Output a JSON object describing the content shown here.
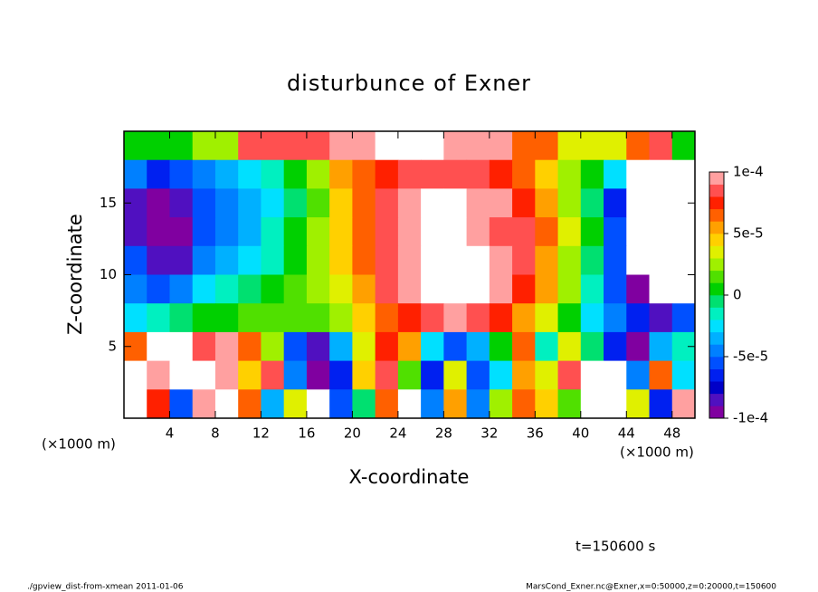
{
  "chart_data": {
    "type": "contourf",
    "title": "disturbunce of Exner",
    "x_label": "X-coordinate",
    "y_label": "Z-coordinate",
    "x_unit_label": "(×1000 m)",
    "time_label": "t=150600 s",
    "footer_left": "./gpview_dist-from-xmean  2011-01-06",
    "footer_right": "MarsCond_Exner.nc@Exner,x=0:50000,z=0:20000,t=150600",
    "xlim": [
      0,
      50
    ],
    "xticks": [
      4,
      8,
      12,
      16,
      20,
      24,
      28,
      32,
      36,
      40,
      44,
      48
    ],
    "ylim": [
      0,
      20
    ],
    "yticks": [
      5,
      10,
      15
    ],
    "clim": [
      -0.0001,
      0.0001
    ],
    "cticks": [
      {
        "value": 0.0001,
        "label": "1e-4"
      },
      {
        "value": 5e-05,
        "label": "5e-5"
      },
      0,
      {
        "value": -5e-05,
        "label": "-5e-5"
      },
      {
        "value": -0.0001,
        "label": "-1e-4"
      }
    ],
    "colors": [
      "#8000a0",
      "#5010c0",
      "#0000c8",
      "#0020f0",
      "#0050ff",
      "#0080ff",
      "#00b0ff",
      "#00e0ff",
      "#00f0c0",
      "#00e070",
      "#00d000",
      "#50e000",
      "#a0f000",
      "#e0f000",
      "#ffd000",
      "#ffa000",
      "#ff6000",
      "#ff2000",
      "#ff5050",
      "#ffa0a0"
    ],
    "out_of_range_color": "#ffffff",
    "x": [
      1,
      3,
      5,
      7,
      9,
      11,
      13,
      15,
      17,
      19,
      21,
      23,
      25,
      27,
      29,
      31,
      33,
      35,
      37,
      39,
      41,
      43,
      45,
      47,
      49
    ],
    "y": [
      19,
      17,
      15,
      13,
      11,
      9,
      7,
      5,
      3,
      1
    ],
    "z": [
      [
        0,
        0,
        0,
        2e-05,
        2e-05,
        8e-05,
        8e-05,
        8e-05,
        8e-05,
        9e-05,
        9e-05,
        0.00012,
        0.00012,
        0.00012,
        9e-05,
        9e-05,
        9e-05,
        6e-05,
        6e-05,
        3e-05,
        3e-05,
        3e-05,
        6e-05,
        8e-05,
        0
      ],
      [
        -5e-05,
        -7e-05,
        -6e-05,
        -5e-05,
        -4e-05,
        -3e-05,
        -2e-05,
        0,
        2e-05,
        5e-05,
        6e-05,
        7e-05,
        8e-05,
        8e-05,
        8e-05,
        8e-05,
        7e-05,
        6e-05,
        4e-05,
        2e-05,
        0,
        -3e-05,
        -0.00012,
        -0.00012,
        -0.00012
      ],
      [
        -8e-05,
        -9e-05,
        -8e-05,
        -6e-05,
        -5e-05,
        -4e-05,
        -3e-05,
        -1e-05,
        1e-05,
        4e-05,
        6e-05,
        8e-05,
        9e-05,
        0.00012,
        0.00011,
        9e-05,
        9e-05,
        7e-05,
        5e-05,
        2e-05,
        -1e-05,
        -7e-05,
        -0.00012,
        -0.00012,
        -0.00012
      ],
      [
        -8e-05,
        -9e-05,
        -9e-05,
        -6e-05,
        -5e-05,
        -4e-05,
        -2e-05,
        0,
        2e-05,
        4e-05,
        6e-05,
        8e-05,
        0.0001,
        0.00012,
        0.00012,
        0.0001,
        8e-05,
        8e-05,
        6e-05,
        3e-05,
        0,
        -6e-05,
        -0.00012,
        -0.00012,
        -0.00012
      ],
      [
        -6e-05,
        -8e-05,
        -8e-05,
        -5e-05,
        -4e-05,
        -3e-05,
        -2e-05,
        0,
        2e-05,
        4e-05,
        6e-05,
        8e-05,
        9e-05,
        0.00012,
        0.00012,
        0.00011,
        9e-05,
        8e-05,
        5e-05,
        2e-05,
        -1e-05,
        -6e-05,
        -0.00012,
        -0.00012,
        -0.00012
      ],
      [
        -5e-05,
        -6e-05,
        -5e-05,
        -3e-05,
        -2e-05,
        -1e-05,
        0,
        1e-05,
        2e-05,
        3e-05,
        5e-05,
        8e-05,
        9e-05,
        0.00012,
        0.00012,
        0.00012,
        9e-05,
        7e-05,
        5e-05,
        2e-05,
        -2e-05,
        -6e-05,
        -9e-05,
        -0.00012,
        -0.00012
      ],
      [
        -3e-05,
        -2e-05,
        -1e-05,
        0,
        0,
        1e-05,
        1e-05,
        1e-05,
        1e-05,
        2e-05,
        4e-05,
        6e-05,
        7e-05,
        8e-05,
        9e-05,
        8e-05,
        7e-05,
        5e-05,
        3e-05,
        0,
        -3e-05,
        -5e-05,
        -7e-05,
        -8e-05,
        -6e-05
      ],
      [
        6e-05,
        0.00012,
        0.00012,
        8e-05,
        9e-05,
        6e-05,
        2e-05,
        -6e-05,
        -8e-05,
        -4e-05,
        3e-05,
        7e-05,
        5e-05,
        -3e-05,
        -6e-05,
        -4e-05,
        0,
        6e-05,
        -2e-05,
        3e-05,
        -1e-05,
        -7e-05,
        -9e-05,
        -4e-05,
        -2e-05
      ],
      [
        0.00012,
        9e-05,
        0.00012,
        0.00012,
        0.0001,
        4e-05,
        8e-05,
        -5e-05,
        -9e-05,
        -7e-05,
        4e-05,
        8e-05,
        1e-05,
        -7e-05,
        3e-05,
        -6e-05,
        -3e-05,
        5e-05,
        3e-05,
        8e-05,
        -0.00012,
        -0.00012,
        -5e-05,
        6e-05,
        -3e-05
      ],
      [
        0.00012,
        7e-05,
        -6e-05,
        9e-05,
        0.00012,
        6e-05,
        -4e-05,
        3e-05,
        0.00012,
        -6e-05,
        -1e-05,
        6e-05,
        0.00012,
        -5e-05,
        5e-05,
        -5e-05,
        2e-05,
        6e-05,
        4e-05,
        1e-05,
        -0.00012,
        -0.00012,
        3e-05,
        -7e-05,
        0.0001
      ]
    ]
  }
}
